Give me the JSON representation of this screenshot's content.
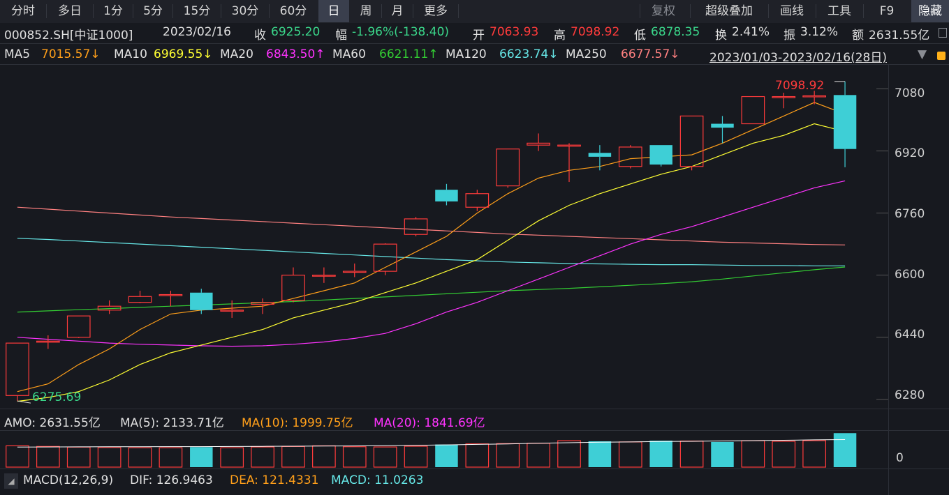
{
  "toolbar": {
    "periods": [
      "分时",
      "多日",
      "1分",
      "5分",
      "15分",
      "30分",
      "60分",
      "日",
      "周",
      "月",
      "更多"
    ],
    "active_period": "日",
    "tools": [
      "复权",
      "超级叠加",
      "画线",
      "工具",
      "F9",
      "隐藏"
    ]
  },
  "info": {
    "code": "000852.SH[中证1000]",
    "date": "2023/02/16",
    "close_label": "收",
    "close": "6925.20",
    "change_label": "幅",
    "change": "-1.96%(-138.40)",
    "open_label": "开",
    "open": "7063.93",
    "high_label": "高",
    "high": "7098.92",
    "low_label": "低",
    "low": "6878.35",
    "turnover_label": "换",
    "turnover": "2.41%",
    "amplitude_label": "振",
    "amplitude": "3.12%",
    "amount_label": "额",
    "amount": "2631.55亿"
  },
  "ma_bar": {
    "ma5_label": "MA5",
    "ma5": "7015.57↓",
    "ma10_label": "MA10",
    "ma10": "6969.55↓",
    "ma20_label": "MA20",
    "ma20": "6843.50↑",
    "ma60_label": "MA60",
    "ma60": "6621.11↑",
    "ma120_label": "MA120",
    "ma120": "6623.74↓",
    "ma250_label": "MA250",
    "ma250": "6677.57↓",
    "range": "2023/01/03-2023/02/16(28日)"
  },
  "colors": {
    "up": "#ff3b3b",
    "down": "#3ecfd6",
    "ma5": "#ff9f1a",
    "ma10": "#ffff33",
    "ma20": "#ff33ff",
    "ma60": "#33cc33",
    "ma120": "#66e6e6",
    "ma250": "#ff8080"
  },
  "price_axis": {
    "ticks": [
      "7080",
      "6920",
      "6760",
      "6600",
      "6440",
      "6280"
    ],
    "max_label": "7098.92",
    "min_label": "6275.69"
  },
  "volume_panel": {
    "amo_label": "AMO:",
    "amo": "2631.55亿",
    "ma5_label": "MA(5):",
    "ma5": "2133.71亿",
    "ma10_label": "MA(10):",
    "ma10": "1999.75亿",
    "ma20_label": "MA(20):",
    "ma20": "1841.69亿",
    "axis_zero": "0"
  },
  "macd_panel": {
    "title": "MACD(12,26,9)",
    "dif_label": "DIF:",
    "dif": "126.9463",
    "dea_label": "DEA:",
    "dea": "121.4331",
    "macd_label": "MACD:",
    "macd": "11.0263"
  },
  "chart_data": {
    "type": "candlestick",
    "price_ylim": [
      6260,
      7140
    ],
    "candles": [
      {
        "o": 6290,
        "c": 6425,
        "h": 6425,
        "l": 6276
      },
      {
        "o": 6430,
        "c": 6430,
        "h": 6445,
        "l": 6410
      },
      {
        "o": 6440,
        "c": 6495,
        "h": 6495,
        "l": 6438
      },
      {
        "o": 6510,
        "c": 6520,
        "h": 6535,
        "l": 6500
      },
      {
        "o": 6530,
        "c": 6545,
        "h": 6560,
        "l": 6528
      },
      {
        "o": 6550,
        "c": 6550,
        "h": 6560,
        "l": 6520
      },
      {
        "o": 6555,
        "c": 6510,
        "h": 6565,
        "l": 6500
      },
      {
        "o": 6510,
        "c": 6510,
        "h": 6535,
        "l": 6490
      },
      {
        "o": 6525,
        "c": 6530,
        "h": 6540,
        "l": 6500
      },
      {
        "o": 6535,
        "c": 6600,
        "h": 6620,
        "l": 6530
      },
      {
        "o": 6600,
        "c": 6600,
        "h": 6620,
        "l": 6580
      },
      {
        "o": 6610,
        "c": 6610,
        "h": 6630,
        "l": 6595
      },
      {
        "o": 6610,
        "c": 6680,
        "h": 6682,
        "l": 6600
      },
      {
        "o": 6705,
        "c": 6745,
        "h": 6750,
        "l": 6700
      },
      {
        "o": 6820,
        "c": 6790,
        "h": 6835,
        "l": 6780
      },
      {
        "o": 6775,
        "c": 6810,
        "h": 6820,
        "l": 6765
      },
      {
        "o": 6830,
        "c": 6925,
        "h": 6925,
        "l": 6825
      },
      {
        "o": 6935,
        "c": 6940,
        "h": 6965,
        "l": 6920
      },
      {
        "o": 6935,
        "c": 6935,
        "h": 6940,
        "l": 6840
      },
      {
        "o": 6915,
        "c": 6905,
        "h": 6935,
        "l": 6870
      },
      {
        "o": 6880,
        "c": 6930,
        "h": 6935,
        "l": 6875
      },
      {
        "o": 6935,
        "c": 6885,
        "h": 6935,
        "l": 6880
      },
      {
        "o": 6880,
        "c": 7010,
        "h": 7010,
        "l": 6870
      },
      {
        "o": 6990,
        "c": 6980,
        "h": 7010,
        "l": 6940
      },
      {
        "o": 6990,
        "c": 7060,
        "h": 7060,
        "l": 6990
      },
      {
        "o": 7060,
        "c": 7060,
        "h": 7070,
        "l": 7030
      },
      {
        "o": 7060,
        "c": 7062,
        "h": 7075,
        "l": 7040
      },
      {
        "o": 7064,
        "c": 6925,
        "h": 7099,
        "l": 6878
      }
    ],
    "ma5": [
      6300,
      6320,
      6370,
      6410,
      6460,
      6500,
      6510,
      6515,
      6520,
      6540,
      6560,
      6580,
      6620,
      6660,
      6700,
      6760,
      6810,
      6850,
      6870,
      6880,
      6900,
      6905,
      6910,
      6940,
      6975,
      7010,
      7045,
      7015
    ],
    "ma10": [
      6275,
      6285,
      6300,
      6330,
      6370,
      6400,
      6420,
      6440,
      6460,
      6490,
      6510,
      6530,
      6555,
      6580,
      6610,
      6640,
      6690,
      6740,
      6780,
      6810,
      6835,
      6860,
      6880,
      6910,
      6940,
      6960,
      6990,
      6970
    ],
    "ma20": [
      6440,
      6435,
      6430,
      6425,
      6422,
      6420,
      6418,
      6417,
      6418,
      6422,
      6428,
      6437,
      6450,
      6475,
      6505,
      6530,
      6560,
      6590,
      6620,
      6650,
      6680,
      6705,
      6725,
      6750,
      6775,
      6800,
      6825,
      6843
    ],
    "ma60": [
      6505,
      6508,
      6511,
      6514,
      6517,
      6520,
      6523,
      6526,
      6529,
      6532,
      6536,
      6540,
      6544,
      6548,
      6552,
      6556,
      6560,
      6563,
      6566,
      6570,
      6574,
      6578,
      6583,
      6590,
      6598,
      6606,
      6614,
      6621
    ],
    "ma120": [
      6695,
      6692,
      6688,
      6684,
      6680,
      6676,
      6672,
      6668,
      6664,
      6660,
      6656,
      6652,
      6648,
      6644,
      6640,
      6637,
      6634,
      6632,
      6630,
      6629,
      6628,
      6627,
      6627,
      6626,
      6625,
      6625,
      6624,
      6624
    ],
    "ma250": [
      6775,
      6770,
      6765,
      6760,
      6755,
      6750,
      6746,
      6742,
      6738,
      6734,
      6730,
      6726,
      6722,
      6718,
      6714,
      6710,
      6706,
      6703,
      6700,
      6697,
      6694,
      6691,
      6688,
      6685,
      6683,
      6681,
      6679,
      6678
    ],
    "volume": [
      1650,
      1600,
      1550,
      1520,
      1500,
      1500,
      1550,
      1500,
      1560,
      1600,
      1650,
      1580,
      1560,
      1620,
      1750,
      1800,
      1820,
      1850,
      2050,
      2000,
      1950,
      2050,
      2020,
      1950,
      2050,
      2000,
      2050,
      2632
    ],
    "volume_ma": [
      1550,
      1560,
      1570,
      1575,
      1580,
      1585,
      1590,
      1600,
      1610,
      1620,
      1630,
      1640,
      1660,
      1690,
      1720,
      1760,
      1800,
      1850,
      1890,
      1930,
      1950,
      1980,
      2000,
      2030,
      2050,
      2080,
      2110,
      2134
    ],
    "volume_ylim": [
      0,
      2700
    ]
  }
}
